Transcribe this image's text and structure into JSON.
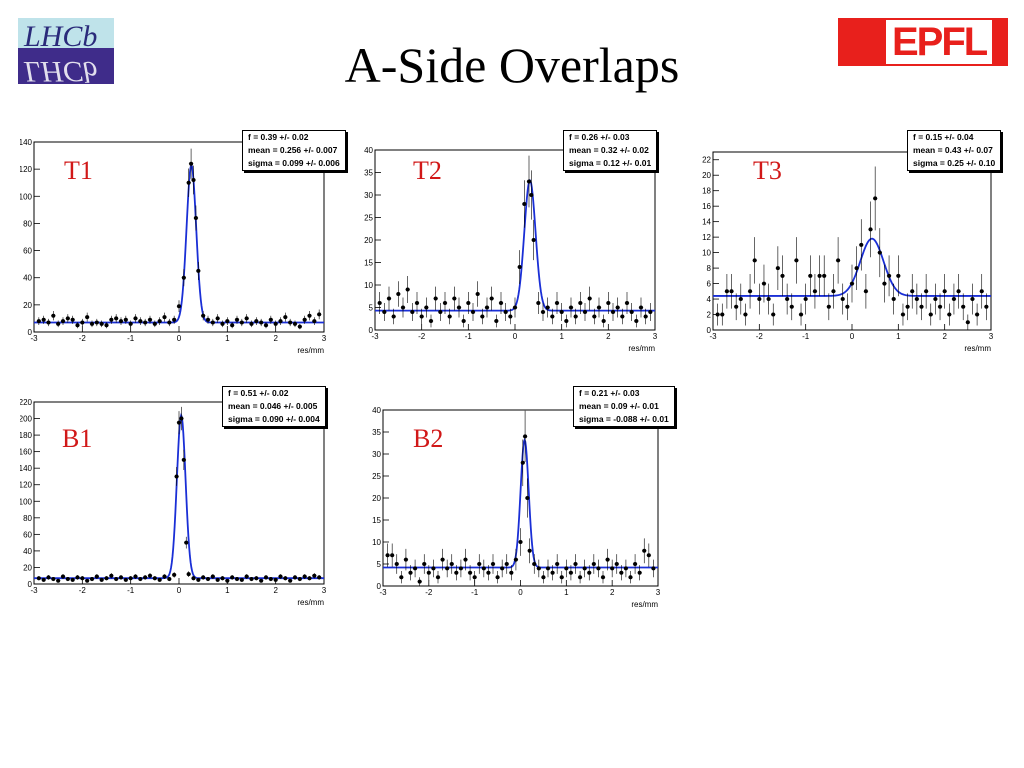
{
  "slide": {
    "title": "A-Side Overlaps"
  },
  "logos": {
    "lhcb": "LHCb",
    "epfl": "EPFL"
  },
  "chart_data": [
    {
      "type": "scatter",
      "label": "T1",
      "xlabel": "res/mm",
      "xlim": [
        -3,
        3
      ],
      "ylim": [
        0,
        140
      ],
      "yticks": [
        0,
        20,
        40,
        60,
        80,
        100,
        120,
        140
      ],
      "xticks": [
        -3,
        -2,
        -1,
        0,
        1,
        2,
        3
      ],
      "grid": false,
      "stats": [
        {
          "k": "f",
          "v": "0.39 +/- 0.02"
        },
        {
          "k": "mean",
          "v": "0.256 +/- 0.007"
        },
        {
          "k": "sigma",
          "v": "0.099 +/- 0.006"
        }
      ],
      "fit": {
        "baseline": 7,
        "amp": 116,
        "mean": 0.256,
        "sigma": 0.099
      },
      "points": [
        [
          -2.9,
          8
        ],
        [
          -2.8,
          9
        ],
        [
          -2.7,
          7
        ],
        [
          -2.6,
          12
        ],
        [
          -2.5,
          6
        ],
        [
          -2.4,
          8
        ],
        [
          -2.3,
          10
        ],
        [
          -2.2,
          9
        ],
        [
          -2.1,
          5
        ],
        [
          -2.0,
          7
        ],
        [
          -1.9,
          11
        ],
        [
          -1.8,
          6
        ],
        [
          -1.7,
          7
        ],
        [
          -1.6,
          6
        ],
        [
          -1.5,
          5
        ],
        [
          -1.4,
          9
        ],
        [
          -1.3,
          10
        ],
        [
          -1.2,
          8
        ],
        [
          -1.1,
          9
        ],
        [
          -1.0,
          6
        ],
        [
          -0.9,
          10
        ],
        [
          -0.8,
          8
        ],
        [
          -0.7,
          7
        ],
        [
          -0.6,
          9
        ],
        [
          -0.5,
          6
        ],
        [
          -0.4,
          8
        ],
        [
          -0.3,
          11
        ],
        [
          -0.2,
          7
        ],
        [
          -0.1,
          9
        ],
        [
          0.0,
          19
        ],
        [
          0.1,
          40
        ],
        [
          0.2,
          110
        ],
        [
          0.25,
          124
        ],
        [
          0.3,
          112
        ],
        [
          0.35,
          84
        ],
        [
          0.4,
          45
        ],
        [
          0.5,
          12
        ],
        [
          0.6,
          9
        ],
        [
          0.7,
          7
        ],
        [
          0.8,
          10
        ],
        [
          0.9,
          6
        ],
        [
          1.0,
          8
        ],
        [
          1.1,
          5
        ],
        [
          1.2,
          9
        ],
        [
          1.3,
          7
        ],
        [
          1.4,
          10
        ],
        [
          1.5,
          6
        ],
        [
          1.6,
          8
        ],
        [
          1.7,
          7
        ],
        [
          1.8,
          5
        ],
        [
          1.9,
          9
        ],
        [
          2.0,
          6
        ],
        [
          2.1,
          8
        ],
        [
          2.2,
          11
        ],
        [
          2.3,
          7
        ],
        [
          2.4,
          6
        ],
        [
          2.5,
          4
        ],
        [
          2.6,
          9
        ],
        [
          2.7,
          12
        ],
        [
          2.8,
          8
        ],
        [
          2.9,
          13
        ]
      ]
    },
    {
      "type": "scatter",
      "label": "T2",
      "xlabel": "res/mm",
      "xlim": [
        -3,
        3
      ],
      "ylim": [
        0,
        40
      ],
      "yticks": [
        0,
        5,
        10,
        15,
        20,
        25,
        30,
        35,
        40
      ],
      "xticks": [
        -3,
        -2,
        -1,
        0,
        1,
        2,
        3
      ],
      "grid": false,
      "stats": [
        {
          "k": "f",
          "v": "0.26 +/- 0.03"
        },
        {
          "k": "mean",
          "v": "0.32 +/- 0.02"
        },
        {
          "k": "sigma",
          "v": "0.12 +/- 0.01"
        }
      ],
      "fit": {
        "baseline": 4.3,
        "amp": 29,
        "mean": 0.32,
        "sigma": 0.12
      },
      "points": [
        [
          -2.9,
          6
        ],
        [
          -2.8,
          4
        ],
        [
          -2.7,
          7
        ],
        [
          -2.6,
          3
        ],
        [
          -2.5,
          8
        ],
        [
          -2.4,
          5
        ],
        [
          -2.3,
          9
        ],
        [
          -2.2,
          4
        ],
        [
          -2.1,
          6
        ],
        [
          -2.0,
          3
        ],
        [
          -1.9,
          5
        ],
        [
          -1.8,
          2
        ],
        [
          -1.7,
          7
        ],
        [
          -1.6,
          4
        ],
        [
          -1.5,
          6
        ],
        [
          -1.4,
          3
        ],
        [
          -1.3,
          7
        ],
        [
          -1.2,
          5
        ],
        [
          -1.1,
          2
        ],
        [
          -1.0,
          6
        ],
        [
          -0.9,
          4
        ],
        [
          -0.8,
          8
        ],
        [
          -0.7,
          3
        ],
        [
          -0.6,
          5
        ],
        [
          -0.5,
          7
        ],
        [
          -0.4,
          2
        ],
        [
          -0.3,
          6
        ],
        [
          -0.2,
          4
        ],
        [
          -0.1,
          3
        ],
        [
          0.0,
          5
        ],
        [
          0.1,
          14
        ],
        [
          0.2,
          28
        ],
        [
          0.3,
          33
        ],
        [
          0.35,
          30
        ],
        [
          0.4,
          20
        ],
        [
          0.5,
          6
        ],
        [
          0.6,
          4
        ],
        [
          0.7,
          5
        ],
        [
          0.8,
          3
        ],
        [
          0.9,
          6
        ],
        [
          1.0,
          4
        ],
        [
          1.1,
          2
        ],
        [
          1.2,
          5
        ],
        [
          1.3,
          3
        ],
        [
          1.4,
          6
        ],
        [
          1.5,
          4
        ],
        [
          1.6,
          7
        ],
        [
          1.7,
          3
        ],
        [
          1.8,
          5
        ],
        [
          1.9,
          2
        ],
        [
          2.0,
          6
        ],
        [
          2.1,
          4
        ],
        [
          2.2,
          5
        ],
        [
          2.3,
          3
        ],
        [
          2.4,
          6
        ],
        [
          2.5,
          4
        ],
        [
          2.6,
          2
        ],
        [
          2.7,
          5
        ],
        [
          2.8,
          3
        ],
        [
          2.9,
          4
        ]
      ]
    },
    {
      "type": "scatter",
      "label": "T3",
      "xlabel": "res/mm",
      "xlim": [
        -3,
        3
      ],
      "ylim": [
        0,
        23
      ],
      "yticks": [
        0,
        2,
        4,
        6,
        8,
        10,
        12,
        14,
        16,
        18,
        20,
        22
      ],
      "xticks": [
        -3,
        -2,
        -1,
        0,
        1,
        2,
        3
      ],
      "grid": false,
      "stats": [
        {
          "k": "f",
          "v": "0.15 +/- 0.04"
        },
        {
          "k": "mean",
          "v": "0.43 +/- 0.07"
        },
        {
          "k": "sigma",
          "v": "0.25 +/- 0.10"
        }
      ],
      "fit": {
        "baseline": 4.4,
        "amp": 7.4,
        "mean": 0.43,
        "sigma": 0.25
      },
      "points": [
        [
          -2.9,
          2
        ],
        [
          -2.8,
          2
        ],
        [
          -2.7,
          5
        ],
        [
          -2.6,
          5
        ],
        [
          -2.5,
          3
        ],
        [
          -2.4,
          4
        ],
        [
          -2.3,
          2
        ],
        [
          -2.2,
          5
        ],
        [
          -2.1,
          9
        ],
        [
          -2.0,
          4
        ],
        [
          -1.9,
          6
        ],
        [
          -1.8,
          4
        ],
        [
          -1.7,
          2
        ],
        [
          -1.6,
          8
        ],
        [
          -1.5,
          7
        ],
        [
          -1.4,
          4
        ],
        [
          -1.3,
          3
        ],
        [
          -1.2,
          9
        ],
        [
          -1.1,
          2
        ],
        [
          -1.0,
          4
        ],
        [
          -0.9,
          7
        ],
        [
          -0.8,
          5
        ],
        [
          -0.7,
          7
        ],
        [
          -0.6,
          7
        ],
        [
          -0.5,
          3
        ],
        [
          -0.4,
          5
        ],
        [
          -0.3,
          9
        ],
        [
          -0.2,
          4
        ],
        [
          -0.1,
          3
        ],
        [
          0.0,
          6
        ],
        [
          0.1,
          8
        ],
        [
          0.2,
          11
        ],
        [
          0.3,
          5
        ],
        [
          0.4,
          13
        ],
        [
          0.5,
          17
        ],
        [
          0.6,
          10
        ],
        [
          0.7,
          6
        ],
        [
          0.8,
          7
        ],
        [
          0.9,
          4
        ],
        [
          1.0,
          7
        ],
        [
          1.1,
          2
        ],
        [
          1.2,
          3
        ],
        [
          1.3,
          5
        ],
        [
          1.4,
          4
        ],
        [
          1.5,
          3
        ],
        [
          1.6,
          5
        ],
        [
          1.7,
          2
        ],
        [
          1.8,
          4
        ],
        [
          1.9,
          3
        ],
        [
          2.0,
          5
        ],
        [
          2.1,
          2
        ],
        [
          2.2,
          4
        ],
        [
          2.3,
          5
        ],
        [
          2.4,
          3
        ],
        [
          2.5,
          1
        ],
        [
          2.6,
          4
        ],
        [
          2.7,
          2
        ],
        [
          2.8,
          5
        ],
        [
          2.9,
          3
        ]
      ]
    },
    {
      "type": "scatter",
      "label": "B1",
      "xlabel": "res/mm",
      "xlim": [
        -3,
        3
      ],
      "ylim": [
        0,
        220
      ],
      "yticks": [
        0,
        20,
        40,
        60,
        80,
        100,
        120,
        140,
        160,
        180,
        200,
        220
      ],
      "xticks": [
        -3,
        -2,
        -1,
        0,
        1,
        2,
        3
      ],
      "grid": false,
      "stats": [
        {
          "k": "f",
          "v": "0.51 +/- 0.02"
        },
        {
          "k": "mean",
          "v": "0.046 +/- 0.005"
        },
        {
          "k": "sigma",
          "v": "0.090 +/- 0.004"
        }
      ],
      "fit": {
        "baseline": 7,
        "amp": 197,
        "mean": 0.046,
        "sigma": 0.09
      },
      "points": [
        [
          -2.9,
          7
        ],
        [
          -2.8,
          5
        ],
        [
          -2.7,
          8
        ],
        [
          -2.6,
          6
        ],
        [
          -2.5,
          4
        ],
        [
          -2.4,
          9
        ],
        [
          -2.3,
          6
        ],
        [
          -2.2,
          5
        ],
        [
          -2.1,
          8
        ],
        [
          -2.0,
          7
        ],
        [
          -1.9,
          4
        ],
        [
          -1.8,
          6
        ],
        [
          -1.7,
          9
        ],
        [
          -1.6,
          5
        ],
        [
          -1.5,
          7
        ],
        [
          -1.4,
          10
        ],
        [
          -1.3,
          6
        ],
        [
          -1.2,
          8
        ],
        [
          -1.1,
          5
        ],
        [
          -1.0,
          7
        ],
        [
          -0.9,
          9
        ],
        [
          -0.8,
          6
        ],
        [
          -0.7,
          8
        ],
        [
          -0.6,
          10
        ],
        [
          -0.5,
          7
        ],
        [
          -0.4,
          5
        ],
        [
          -0.3,
          9
        ],
        [
          -0.2,
          6
        ],
        [
          -0.1,
          11
        ],
        [
          -0.05,
          130
        ],
        [
          0.0,
          195
        ],
        [
          0.05,
          200
        ],
        [
          0.1,
          150
        ],
        [
          0.15,
          50
        ],
        [
          0.2,
          12
        ],
        [
          0.3,
          7
        ],
        [
          0.4,
          5
        ],
        [
          0.5,
          8
        ],
        [
          0.6,
          6
        ],
        [
          0.7,
          9
        ],
        [
          0.8,
          5
        ],
        [
          0.9,
          7
        ],
        [
          1.0,
          4
        ],
        [
          1.1,
          8
        ],
        [
          1.2,
          6
        ],
        [
          1.3,
          5
        ],
        [
          1.4,
          9
        ],
        [
          1.5,
          6
        ],
        [
          1.6,
          7
        ],
        [
          1.7,
          4
        ],
        [
          1.8,
          8
        ],
        [
          1.9,
          6
        ],
        [
          2.0,
          5
        ],
        [
          2.1,
          9
        ],
        [
          2.2,
          7
        ],
        [
          2.3,
          4
        ],
        [
          2.4,
          8
        ],
        [
          2.5,
          6
        ],
        [
          2.6,
          9
        ],
        [
          2.7,
          7
        ],
        [
          2.8,
          10
        ],
        [
          2.9,
          8
        ]
      ]
    },
    {
      "type": "scatter",
      "label": "B2",
      "xlabel": "res/mm",
      "xlim": [
        -3,
        3
      ],
      "ylim": [
        0,
        40
      ],
      "yticks": [
        0,
        5,
        10,
        15,
        20,
        25,
        30,
        35,
        40
      ],
      "xticks": [
        -3,
        -2,
        -1,
        0,
        1,
        2,
        3
      ],
      "grid": false,
      "stats": [
        {
          "k": "f",
          "v": "0.21 +/- 0.03"
        },
        {
          "k": "mean",
          "v": "0.09 +/- 0.01"
        },
        {
          "k": "sigma",
          "v": "-0.088 +/- 0.01"
        }
      ],
      "fit": {
        "baseline": 4.2,
        "amp": 29,
        "mean": 0.09,
        "sigma": 0.088
      },
      "points": [
        [
          -2.9,
          7
        ],
        [
          -2.8,
          7
        ],
        [
          -2.7,
          5
        ],
        [
          -2.6,
          2
        ],
        [
          -2.5,
          6
        ],
        [
          -2.4,
          3
        ],
        [
          -2.3,
          4
        ],
        [
          -2.2,
          1
        ],
        [
          -2.1,
          5
        ],
        [
          -2.0,
          3
        ],
        [
          -1.9,
          4
        ],
        [
          -1.8,
          2
        ],
        [
          -1.7,
          6
        ],
        [
          -1.6,
          4
        ],
        [
          -1.5,
          5
        ],
        [
          -1.4,
          3
        ],
        [
          -1.3,
          4
        ],
        [
          -1.2,
          6
        ],
        [
          -1.1,
          3
        ],
        [
          -1.0,
          2
        ],
        [
          -0.9,
          5
        ],
        [
          -0.8,
          4
        ],
        [
          -0.7,
          3
        ],
        [
          -0.6,
          5
        ],
        [
          -0.5,
          2
        ],
        [
          -0.4,
          4
        ],
        [
          -0.3,
          5
        ],
        [
          -0.2,
          3
        ],
        [
          -0.1,
          6
        ],
        [
          0.0,
          10
        ],
        [
          0.05,
          28
        ],
        [
          0.1,
          34
        ],
        [
          0.15,
          20
        ],
        [
          0.2,
          8
        ],
        [
          0.3,
          5
        ],
        [
          0.4,
          4
        ],
        [
          0.5,
          2
        ],
        [
          0.6,
          4
        ],
        [
          0.7,
          3
        ],
        [
          0.8,
          5
        ],
        [
          0.9,
          2
        ],
        [
          1.0,
          4
        ],
        [
          1.1,
          3
        ],
        [
          1.2,
          5
        ],
        [
          1.3,
          2
        ],
        [
          1.4,
          4
        ],
        [
          1.5,
          3
        ],
        [
          1.6,
          5
        ],
        [
          1.7,
          4
        ],
        [
          1.8,
          2
        ],
        [
          1.9,
          6
        ],
        [
          2.0,
          4
        ],
        [
          2.1,
          5
        ],
        [
          2.2,
          3
        ],
        [
          2.3,
          4
        ],
        [
          2.4,
          2
        ],
        [
          2.5,
          5
        ],
        [
          2.6,
          3
        ],
        [
          2.7,
          8
        ],
        [
          2.8,
          7
        ],
        [
          2.9,
          4
        ]
      ]
    }
  ]
}
